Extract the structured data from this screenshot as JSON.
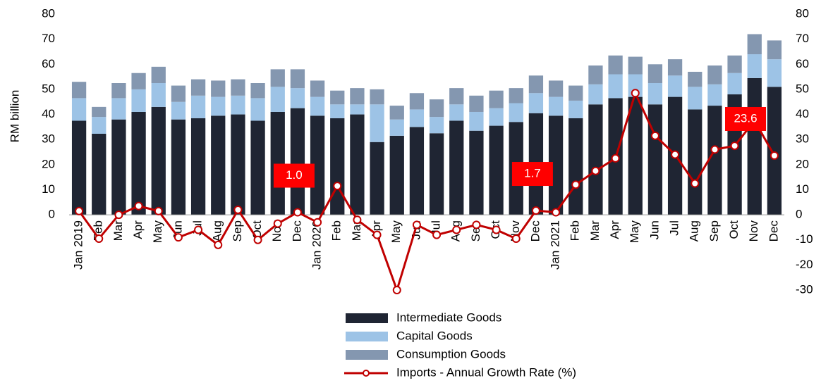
{
  "chart_data": {
    "type": "bar",
    "y_axis_label": "RM billion",
    "categories": [
      "Jan 2019",
      "Feb",
      "Mar",
      "Apr",
      "May",
      "Jun",
      "Jul",
      "Aug",
      "Sep",
      "Oct",
      "Nov",
      "Dec",
      "Jan 2020",
      "Feb",
      "Mar",
      "Apr",
      "May",
      "Jun",
      "Jul",
      "Aug",
      "Sep",
      "Oct",
      "Nov",
      "Dec",
      "Jan 2021",
      "Feb",
      "Mar",
      "Apr",
      "May",
      "Jun",
      "Jul",
      "Aug",
      "Sep",
      "Oct",
      "Nov",
      "Dec"
    ],
    "stacked": true,
    "series": [
      {
        "name": "Intermediate Goods",
        "color": "#1f2533",
        "values": [
          37.5,
          32.3,
          38,
          41,
          43,
          38,
          38.5,
          39.5,
          40,
          37.5,
          41,
          42.5,
          39.5,
          38.5,
          40,
          29,
          31.5,
          35,
          32.5,
          37.5,
          33.5,
          35.5,
          37,
          40.5,
          39.5,
          38.5,
          44,
          46.5,
          47,
          44,
          47,
          42,
          43.5,
          48,
          54.5,
          51
        ]
      },
      {
        "name": "Capital Goods",
        "color": "#9dc3e6",
        "values": [
          9,
          6.7,
          8.5,
          9,
          9.5,
          7,
          9,
          7.5,
          7.5,
          9,
          10,
          8,
          7.5,
          5.5,
          4,
          15,
          6.5,
          7,
          6.5,
          6.5,
          7.5,
          7,
          7.5,
          8,
          7.5,
          7,
          8,
          9.5,
          9,
          8.5,
          8.5,
          9,
          8.5,
          8.5,
          9.5,
          11
        ]
      },
      {
        "name": "Consumption Goods",
        "color": "#8497b0",
        "values": [
          6.5,
          4,
          6,
          6.5,
          6.5,
          6.5,
          6.5,
          6.5,
          6.5,
          6,
          7,
          7.5,
          6.5,
          5.5,
          6.5,
          6,
          5.5,
          6.5,
          7,
          6.5,
          6.5,
          7,
          6,
          7,
          6.5,
          6,
          7.5,
          7.5,
          7,
          7.5,
          6.5,
          6,
          7.5,
          7,
          8,
          7.5
        ]
      },
      {
        "name": "Imports - Annual Growth Rate (%)",
        "type": "line",
        "axis": "y2",
        "color": "#c00000",
        "values": [
          1.5,
          -9.5,
          0,
          3.5,
          1.5,
          -9,
          -6,
          -12,
          2,
          -10,
          -3.5,
          1.0,
          -3,
          11.5,
          -2,
          -8,
          -30,
          -4,
          -8,
          -6,
          -4,
          -6,
          -9.5,
          1.7,
          1,
          12,
          17.5,
          22.5,
          48.5,
          31.5,
          24,
          12.5,
          26,
          27.5,
          37.5,
          23.6
        ],
        "value_labels": [
          null,
          null,
          null,
          null,
          null,
          null,
          null,
          null,
          null,
          null,
          null,
          "1.0",
          null,
          null,
          null,
          null,
          null,
          null,
          null,
          null,
          null,
          null,
          null,
          "1.7",
          null,
          null,
          null,
          null,
          null,
          null,
          null,
          null,
          null,
          null,
          null,
          "23.6"
        ]
      }
    ],
    "ylim": [
      -30,
      80
    ],
    "yticks": [
      0,
      10,
      20,
      30,
      40,
      50,
      60,
      70,
      80
    ],
    "y2lim": [
      -30,
      80
    ],
    "y2ticks": [
      -30,
      -20,
      -10,
      0,
      10,
      20,
      30,
      40,
      50,
      60,
      70,
      80
    ],
    "legend": "bottom"
  }
}
